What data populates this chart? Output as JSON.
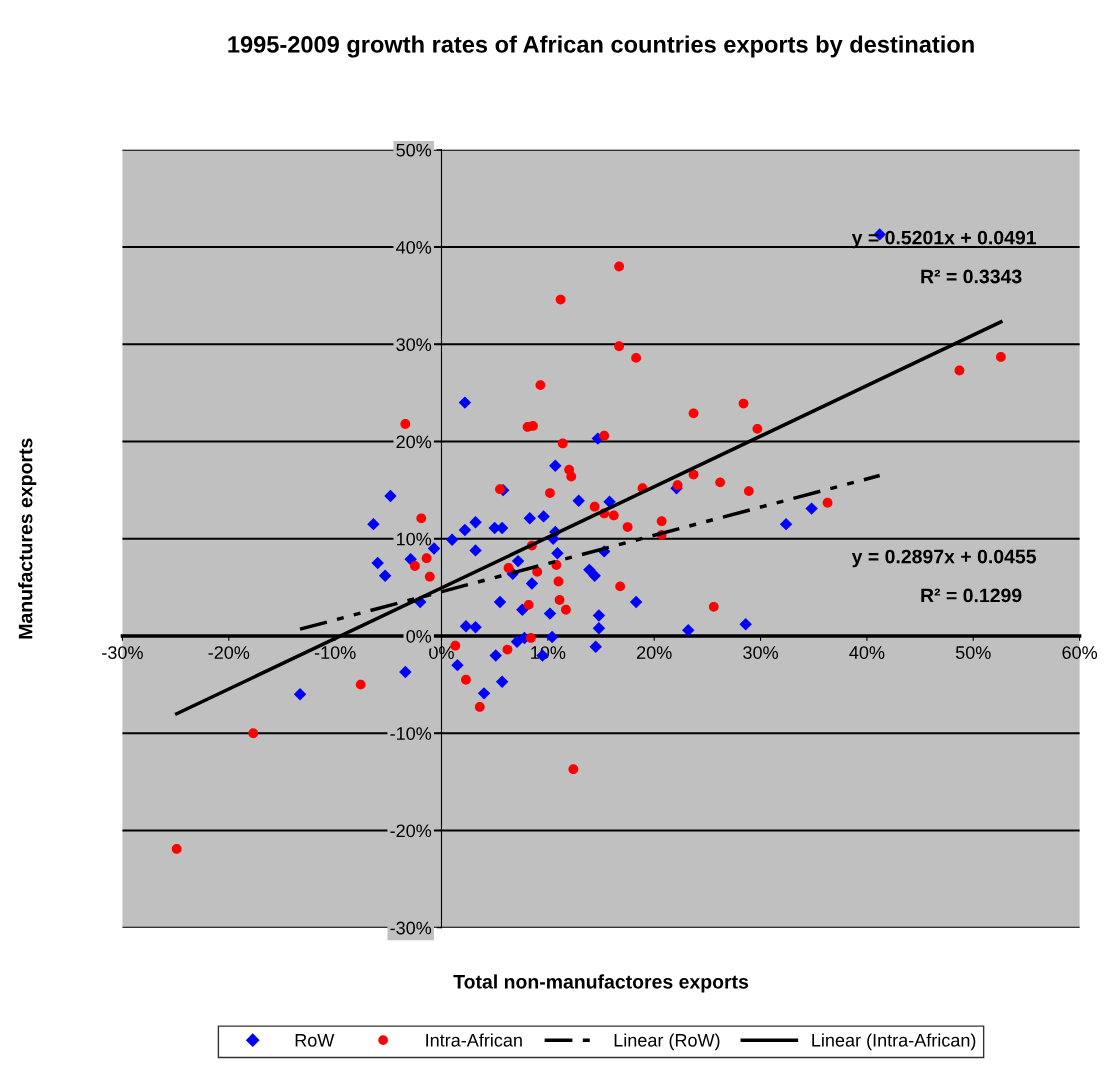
{
  "chart_data": {
    "type": "scatter",
    "title": "1995-2009 growth rates of African countries exports by destination",
    "xlabel": "Total non-manufactores exports",
    "ylabel": "Manufactures exports",
    "xlim": [
      -30,
      60
    ],
    "ylim": [
      -30,
      50
    ],
    "xticks": [
      {
        "value": -30,
        "label": "-30%"
      },
      {
        "value": -20,
        "label": "-20%"
      },
      {
        "value": -10,
        "label": "-10%"
      },
      {
        "value": 0,
        "label": "0%"
      },
      {
        "value": 10,
        "label": "10%"
      },
      {
        "value": 20,
        "label": "20%"
      },
      {
        "value": 30,
        "label": "30%"
      },
      {
        "value": 40,
        "label": "40%"
      },
      {
        "value": 50,
        "label": "50%"
      },
      {
        "value": 60,
        "label": "60%"
      }
    ],
    "yticks": [
      {
        "value": -30,
        "label": "-30%"
      },
      {
        "value": -20,
        "label": "-20%"
      },
      {
        "value": -10,
        "label": "-10%"
      },
      {
        "value": 0,
        "label": "0%"
      },
      {
        "value": 10,
        "label": "10%"
      },
      {
        "value": 20,
        "label": "20%"
      },
      {
        "value": 30,
        "label": "30%"
      },
      {
        "value": 40,
        "label": "40%"
      },
      {
        "value": 50,
        "label": "50%"
      }
    ],
    "grid": "y",
    "legend": "bottom",
    "annotations": [
      "y = 0.5201x + 0.0491",
      "R² = 0.3343",
      "y = 0.2897x + 0.0455",
      "R² = 0.1299"
    ],
    "series": [
      {
        "name": "RoW",
        "marker": "diamond",
        "color": "#0000ff",
        "x": [
          2.2,
          -4.8,
          -6.4,
          -6.0,
          -5.3,
          -2.9,
          -0.7,
          -2.0,
          1.0,
          2.2,
          3.2,
          3.2,
          2.3,
          3.2,
          1.5,
          4.0,
          -3.4,
          -13.3,
          5.0,
          5.7,
          5.8,
          5.1,
          5.7,
          5.5,
          7.2,
          6.7,
          8.3,
          9.6,
          8.5,
          7.6,
          7.1,
          7.8,
          9.5,
          10.2,
          10.4,
          10.7,
          10.7,
          10.5,
          10.9,
          12.9,
          14.7,
          15.8,
          15.3,
          13.9,
          14.4,
          14.8,
          14.8,
          14.5,
          18.3,
          22.1,
          23.2,
          28.6,
          32.4,
          34.8,
          41.2
        ],
        "values": [
          24.0,
          14.4,
          11.5,
          7.5,
          6.2,
          7.9,
          9.0,
          3.5,
          9.9,
          10.9,
          11.7,
          8.8,
          1.0,
          0.9,
          -3.0,
          -5.9,
          -3.7,
          -6.0,
          11.1,
          11.1,
          15.0,
          -2.0,
          -4.7,
          3.5,
          7.7,
          6.4,
          12.1,
          12.3,
          5.4,
          2.7,
          -0.6,
          -0.2,
          -2.0,
          2.3,
          -0.1,
          17.5,
          10.7,
          10.0,
          8.5,
          13.9,
          20.3,
          13.8,
          8.7,
          6.8,
          6.2,
          2.1,
          0.8,
          -1.1,
          3.5,
          15.2,
          0.6,
          1.2,
          11.5,
          13.1,
          41.3
        ]
      },
      {
        "name": "Intra-African",
        "marker": "circle",
        "color": "#ff0000",
        "x": [
          -3.4,
          -1.9,
          -2.5,
          -1.4,
          -1.1,
          1.3,
          2.3,
          -7.6,
          3.6,
          -17.7,
          -24.9,
          12.4,
          16.7,
          11.2,
          16.7,
          18.3,
          9.3,
          8.1,
          8.6,
          11.4,
          15.3,
          12.0,
          12.2,
          5.5,
          10.2,
          14.4,
          15.3,
          16.2,
          17.5,
          18.9,
          22.2,
          23.7,
          23.7,
          26.2,
          28.9,
          28.4,
          29.7,
          20.7,
          20.7,
          8.5,
          6.3,
          9.0,
          10.8,
          11.0,
          16.8,
          8.2,
          11.1,
          11.7,
          8.4,
          6.2,
          25.6,
          36.3,
          48.7,
          52.6
        ],
        "values": [
          21.8,
          12.1,
          7.2,
          8.0,
          6.1,
          -1.0,
          -4.5,
          -5.0,
          -7.3,
          -10.0,
          -21.9,
          -13.7,
          38.0,
          34.6,
          29.8,
          28.6,
          25.8,
          21.5,
          21.6,
          19.8,
          20.6,
          17.1,
          16.4,
          15.1,
          14.7,
          13.3,
          12.6,
          12.4,
          11.2,
          15.2,
          15.5,
          22.9,
          16.6,
          15.8,
          14.9,
          23.9,
          21.3,
          11.8,
          10.4,
          9.3,
          7.0,
          6.6,
          7.3,
          5.6,
          5.1,
          3.2,
          3.7,
          2.7,
          -0.2,
          -1.4,
          3.0,
          13.7,
          27.3,
          28.7
        ]
      },
      {
        "name": "Linear (RoW)",
        "type": "line",
        "line_style": "dashed",
        "color": "#000000",
        "x": [
          -13.3,
          41.2
        ],
        "values": [
          0.7,
          16.5
        ]
      },
      {
        "name": "Linear (Intra-African)",
        "type": "line",
        "line_style": "solid",
        "color": "#000000",
        "x": [
          -24.9,
          52.6
        ],
        "values": [
          -8.0,
          32.3
        ]
      }
    ]
  }
}
